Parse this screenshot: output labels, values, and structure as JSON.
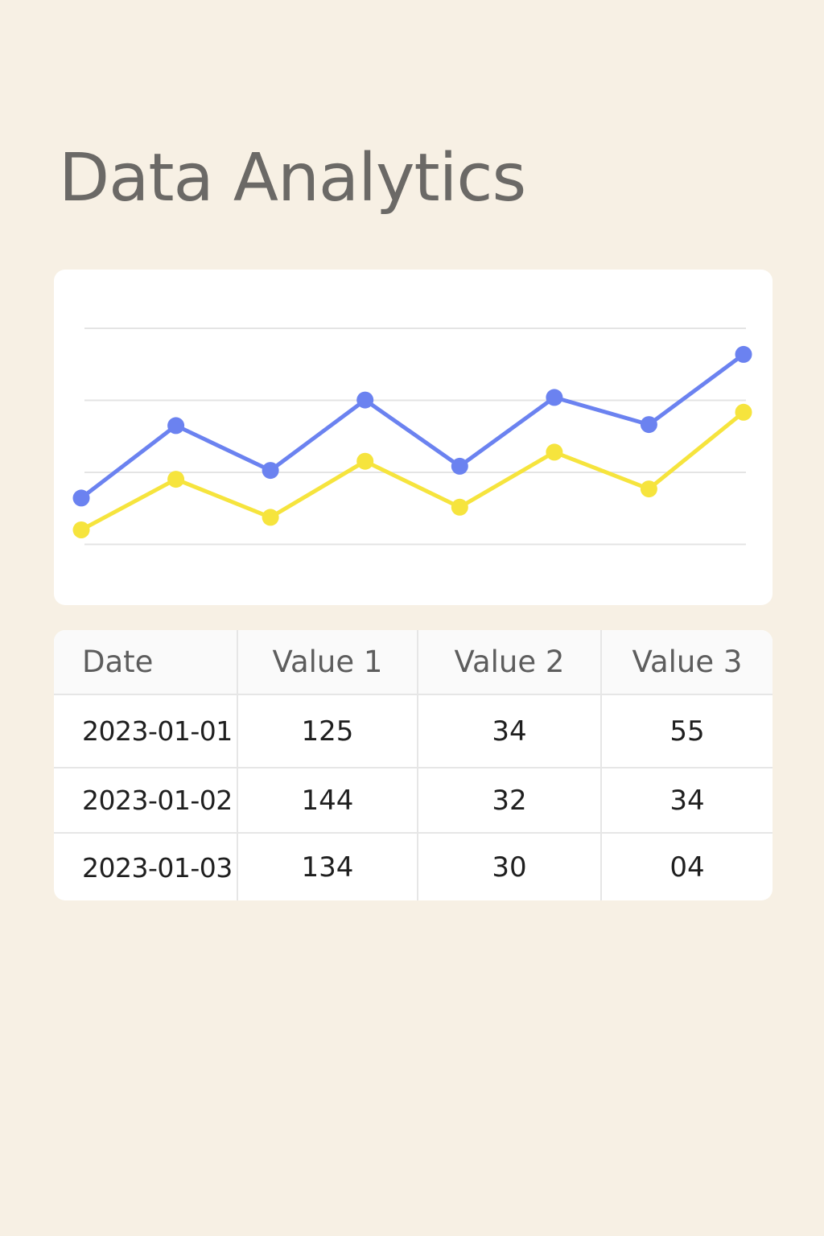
{
  "page": {
    "title": "Data Analytics",
    "background_color": "#f7f0e4"
  },
  "chart_data": {
    "type": "line",
    "x": [
      1,
      2,
      3,
      4,
      5,
      6,
      7,
      8
    ],
    "ylim": [
      0,
      100
    ],
    "grid": true,
    "legend": "none",
    "series": [
      {
        "color": "#6b82f0",
        "values": [
          34.9,
          62.7,
          45.5,
          72.5,
          47.1,
          73.5,
          63.1,
          90.0
        ]
      },
      {
        "color": "#f6e43d",
        "values": [
          22.7,
          42.1,
          27.5,
          49.0,
          31.4,
          52.5,
          38.4,
          67.8
        ]
      }
    ]
  },
  "table": {
    "headers": [
      "Date",
      "Value 1",
      "Value 2",
      "Value 3"
    ],
    "rows": [
      [
        "2023-01-01",
        "125",
        "34",
        "55"
      ],
      [
        "2023-01-02",
        "144",
        "32",
        "34"
      ],
      [
        "2023-01-03",
        "134",
        "30",
        "04"
      ]
    ]
  }
}
